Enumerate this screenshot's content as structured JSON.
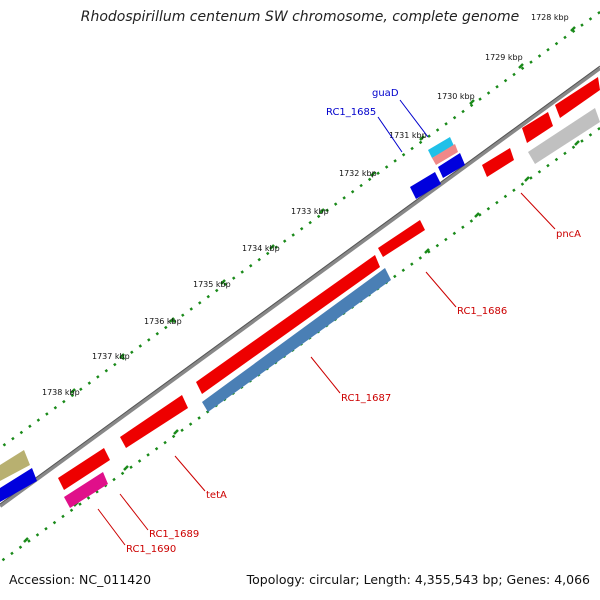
{
  "title": "Rhodospirillum centenum SW chromosome, complete genome",
  "accession": "Accession: NC_011420",
  "topology": "Topology: circular; Length: 4,355,543 bp; Genes: 4,066",
  "colors": {
    "backbone": "#888888",
    "tick": "#1a8a1a",
    "gene_red": "#ee0000",
    "gene_blue": "#0000dd",
    "gene_steel": "#4a7fb5",
    "gene_magenta": "#e0108a",
    "gene_olive": "#b8b070",
    "gene_gray": "#c0c0c0",
    "gene_cyan": "#20c0e8",
    "gene_pink": "#f08888",
    "label_red": "#cc0000",
    "label_blue": "#0000cc"
  },
  "ticks": [
    {
      "label": "1728 kbp"
    },
    {
      "label": "1729 kbp"
    },
    {
      "label": "1730 kbp"
    },
    {
      "label": "1731 kbp"
    },
    {
      "label": "1732 kbp"
    },
    {
      "label": "1733 kbp"
    },
    {
      "label": "1734 kbp"
    },
    {
      "label": "1735 kbp"
    },
    {
      "label": "1736 kbp"
    },
    {
      "label": "1737 kbp"
    },
    {
      "label": "1738 kbp"
    }
  ],
  "genes": [
    {
      "label": "guaD"
    },
    {
      "label": "RC1_1685"
    },
    {
      "label": "pncA"
    },
    {
      "label": "RC1_1686"
    },
    {
      "label": "RC1_1687"
    },
    {
      "label": "tetA"
    },
    {
      "label": "RC1_1689"
    },
    {
      "label": "RC1_1690"
    }
  ]
}
